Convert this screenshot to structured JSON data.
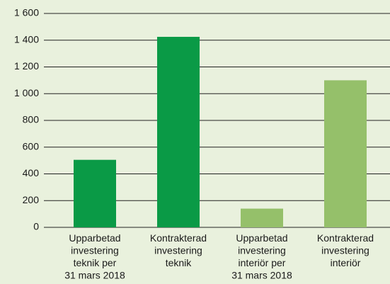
{
  "chart_data": {
    "type": "bar",
    "categories": [
      [
        "Upparbetad",
        "investering",
        "teknik per",
        "31 mars 2018"
      ],
      [
        "Kontrakterad",
        "investering",
        "teknik"
      ],
      [
        "Upparbetad",
        "investering",
        "interiör per",
        "31 mars 2018"
      ],
      [
        "Kontrakterad",
        "investering",
        "interiör"
      ]
    ],
    "values": [
      505,
      1425,
      140,
      1100
    ],
    "colors": [
      "#0a9a46",
      "#0a9a46",
      "#95c06a",
      "#95c06a"
    ],
    "ylim": [
      0,
      1600
    ],
    "yticks": [
      0,
      200,
      400,
      600,
      800,
      {
        "value": 1000,
        "label": "1 000"
      },
      {
        "value": 1200,
        "label": "1 200"
      },
      {
        "value": 1400,
        "label": "1 400"
      },
      {
        "value": 1600,
        "label": "1 600"
      }
    ],
    "grid": true
  }
}
